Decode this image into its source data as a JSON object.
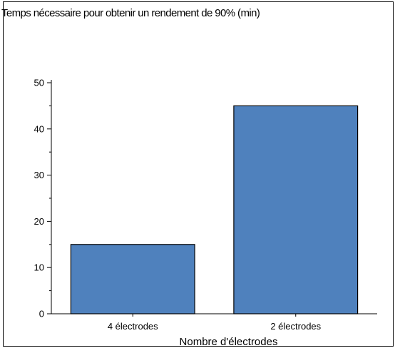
{
  "chart_data": {
    "type": "bar",
    "title": "Temps nécessaire pour obtenir un rendement de 90% (min)",
    "xlabel": "Nombre d'électrodes",
    "ylabel": "",
    "categories": [
      "4 électrodes",
      "2 électrodes"
    ],
    "values": [
      15,
      45
    ],
    "ylim": [
      0,
      50
    ],
    "yticks": [
      0,
      10,
      20,
      30,
      40,
      50
    ],
    "grid": false,
    "legend": "none",
    "bar_color": "#4f81bd"
  }
}
